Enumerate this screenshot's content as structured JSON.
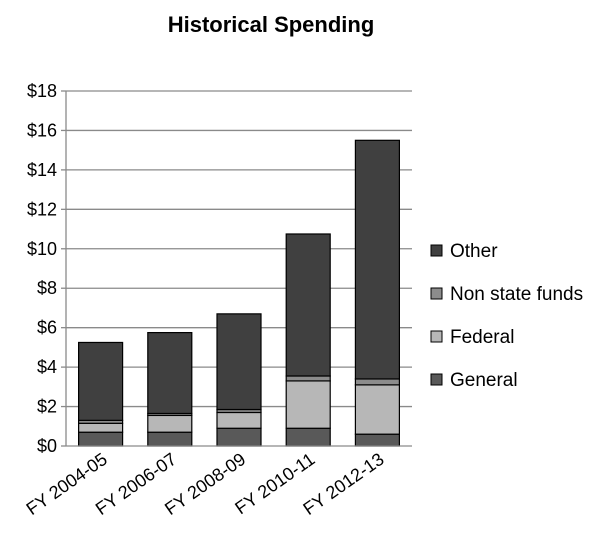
{
  "chart_data": {
    "type": "bar",
    "stacked": true,
    "title": "Historical Spending",
    "xlabel": "",
    "ylabel": "",
    "ylim": [
      0,
      18
    ],
    "y_tick_step": 2,
    "y_tick_prefix": "$",
    "grid": true,
    "legend_position": "right",
    "categories": [
      "FY 2004-05",
      "FY 2006-07",
      "FY 2008-09",
      "FY 2010-11",
      "FY 2012-13"
    ],
    "series": [
      {
        "name": "General",
        "color": "#595959",
        "values": [
          0.7,
          0.7,
          0.9,
          0.9,
          0.6
        ]
      },
      {
        "name": "Federal",
        "color": "#b7b7b7",
        "values": [
          0.45,
          0.85,
          0.8,
          2.4,
          2.5
        ]
      },
      {
        "name": "Non state funds",
        "color": "#8c8c8c",
        "values": [
          0.15,
          0.1,
          0.15,
          0.25,
          0.3
        ]
      },
      {
        "name": "Other",
        "color": "#404040",
        "values": [
          3.95,
          4.1,
          4.85,
          7.2,
          12.1
        ]
      }
    ]
  }
}
